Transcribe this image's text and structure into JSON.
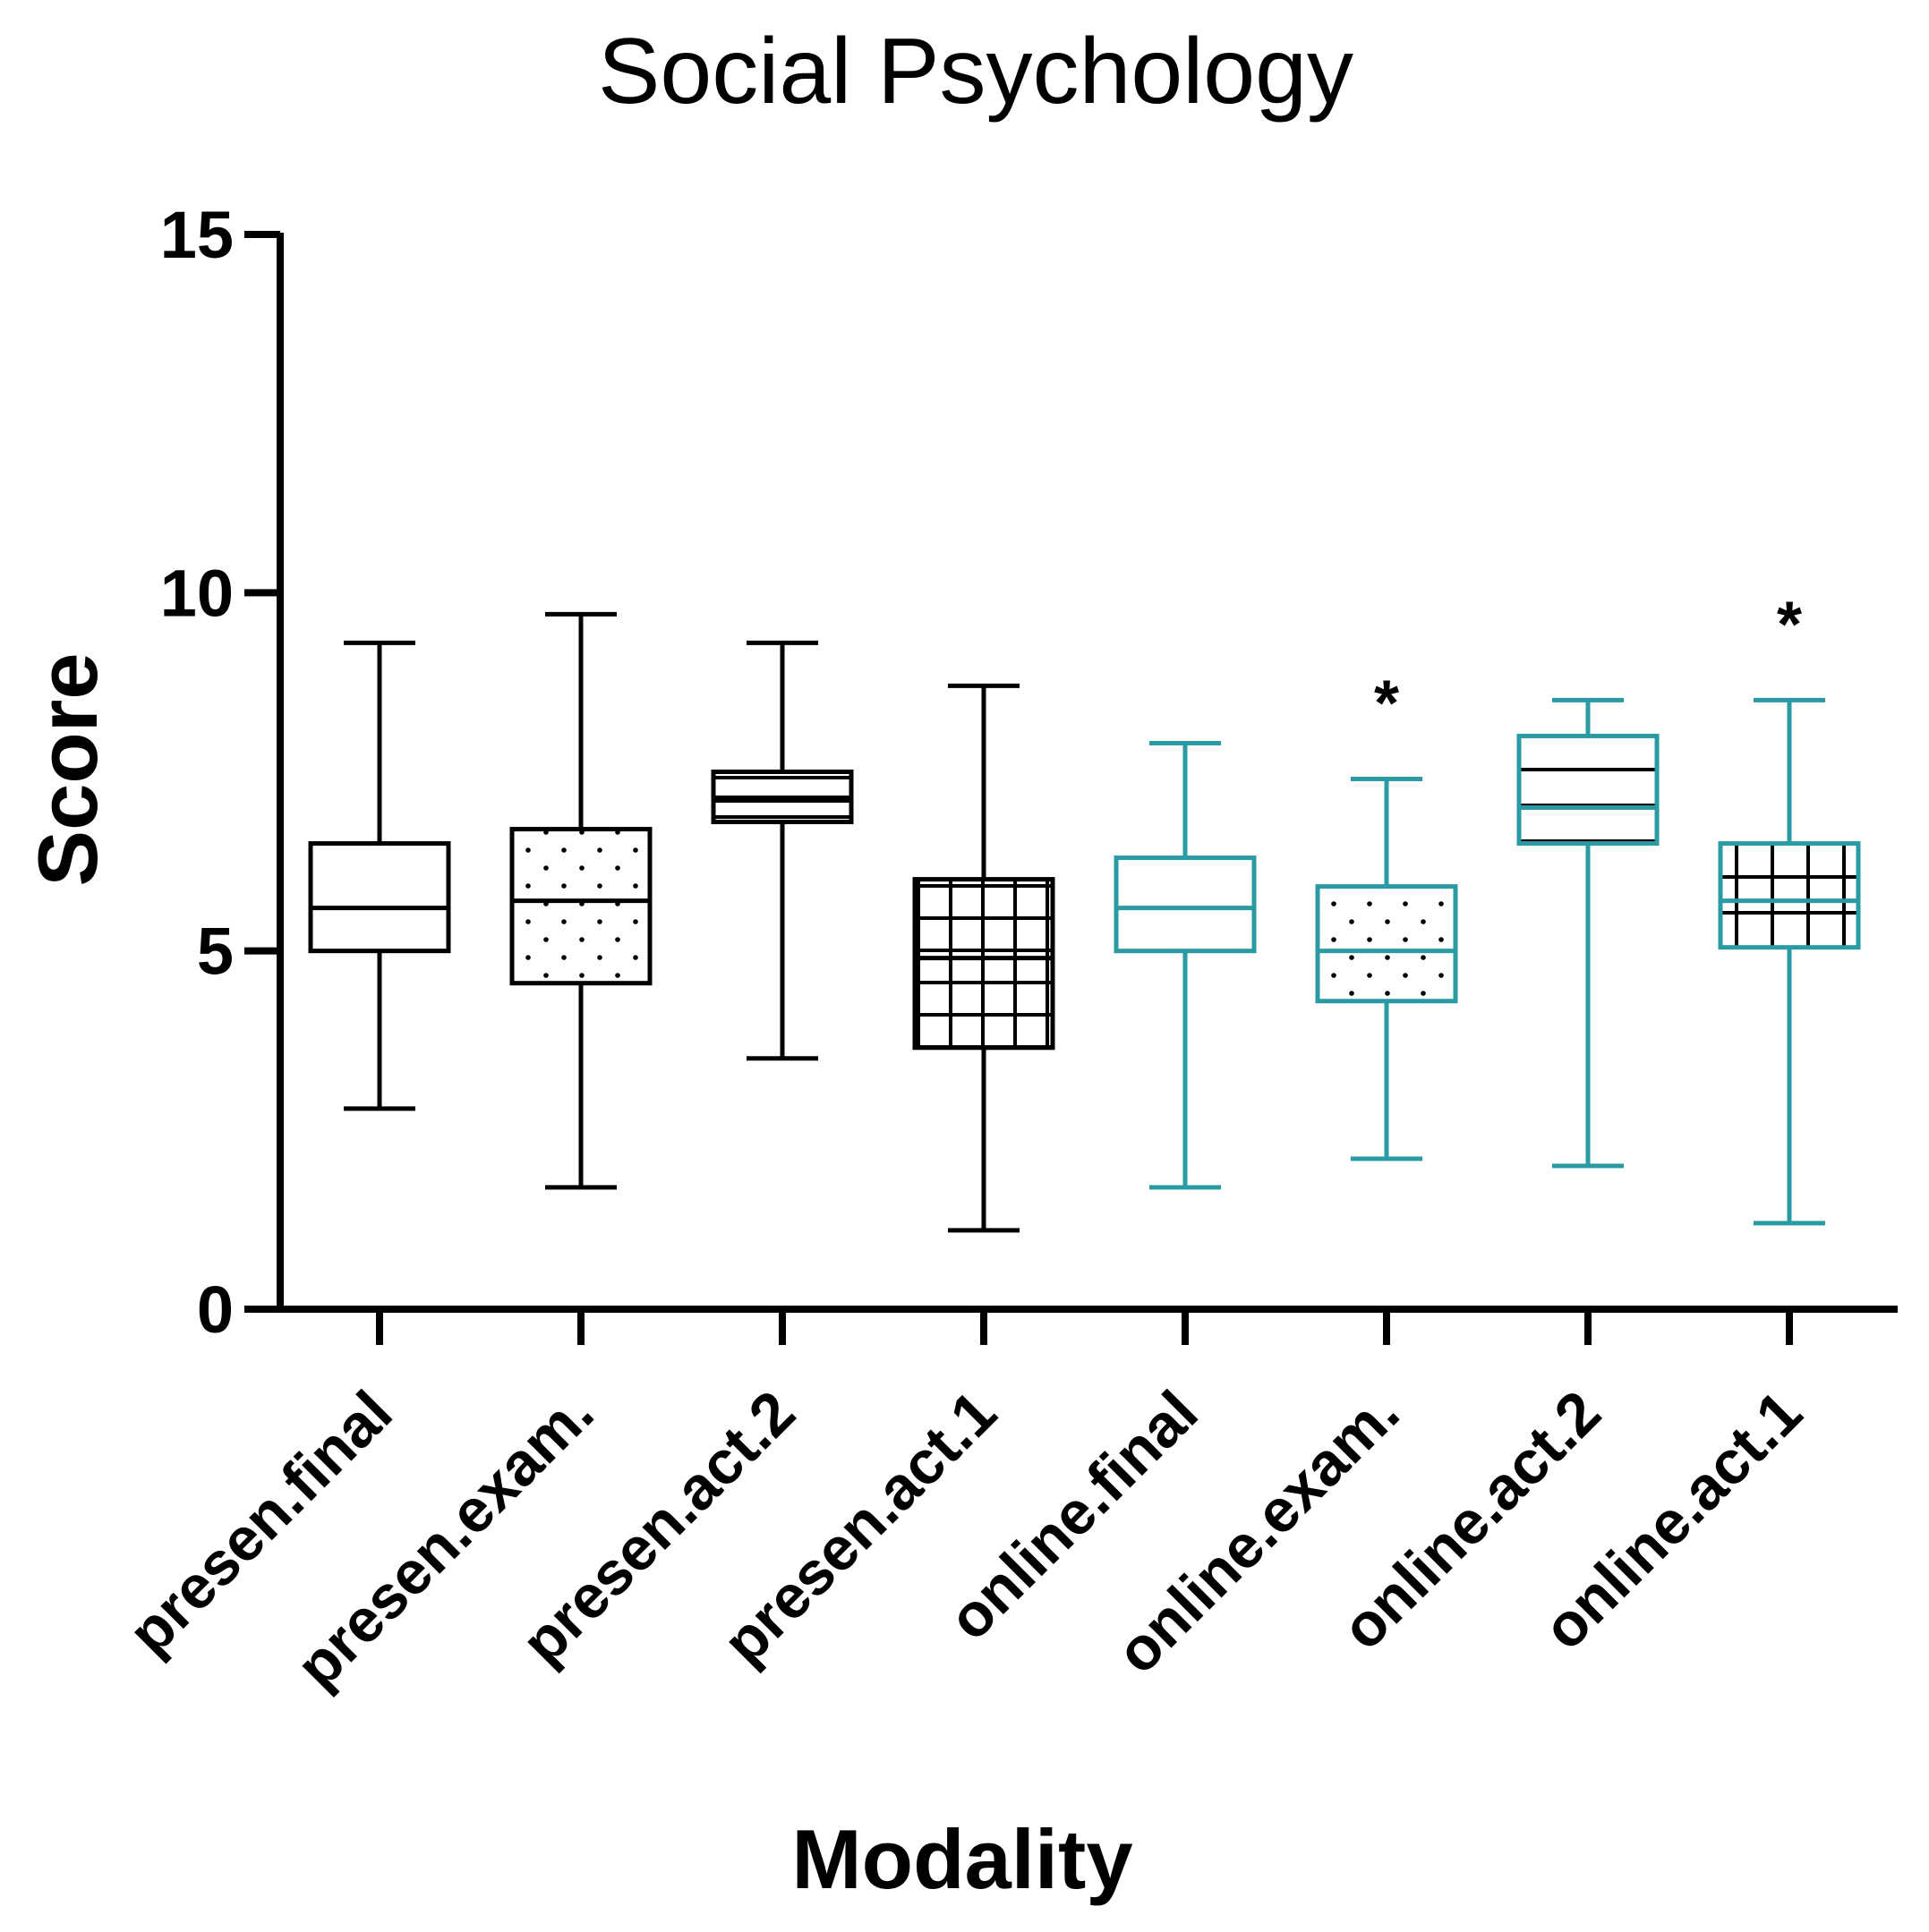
{
  "chart_data": {
    "type": "box",
    "title": "Social Psychology",
    "xlabel": "Modality",
    "ylabel": "Score",
    "ylim": [
      0,
      15
    ],
    "yticks": [
      0,
      5,
      10,
      15
    ],
    "colors": {
      "presential": "#000000",
      "online": "#2a9aa3"
    },
    "categories": [
      "presen.final",
      "presen.exam.",
      "presen.act.2",
      "presen.act.1",
      "online.final",
      "online.exam.",
      "online.act.2",
      "online.act.1"
    ],
    "boxes": [
      {
        "category": "presen.final",
        "group": "presential",
        "pattern": "none",
        "min": 2.8,
        "q1": 5.0,
        "median": 5.6,
        "q3": 6.5,
        "max": 9.3,
        "significance": ""
      },
      {
        "category": "presen.exam.",
        "group": "presential",
        "pattern": "dots",
        "min": 1.7,
        "q1": 4.55,
        "median": 5.7,
        "q3": 6.7,
        "max": 9.7,
        "significance": ""
      },
      {
        "category": "presen.act.2",
        "group": "presential",
        "pattern": "hlines",
        "min": 3.5,
        "q1": 6.8,
        "median": 7.1,
        "q3": 7.5,
        "max": 9.3,
        "significance": ""
      },
      {
        "category": "presen.act.1",
        "group": "presential",
        "pattern": "grid",
        "min": 1.1,
        "q1": 3.65,
        "median": 4.9,
        "q3": 6.0,
        "max": 8.7,
        "significance": ""
      },
      {
        "category": "online.final",
        "group": "online",
        "pattern": "none",
        "min": 1.7,
        "q1": 5.0,
        "median": 5.6,
        "q3": 6.3,
        "max": 7.9,
        "significance": ""
      },
      {
        "category": "online.exam.",
        "group": "online",
        "pattern": "dots",
        "min": 2.1,
        "q1": 4.3,
        "median": 5.0,
        "q3": 5.9,
        "max": 7.4,
        "significance": "*"
      },
      {
        "category": "online.act.2",
        "group": "online",
        "pattern": "hlines",
        "min": 2.0,
        "q1": 6.5,
        "median": 7.0,
        "q3": 8.0,
        "max": 8.5,
        "significance": ""
      },
      {
        "category": "online.act.1",
        "group": "online",
        "pattern": "grid",
        "min": 1.2,
        "q1": 5.05,
        "median": 5.7,
        "q3": 6.5,
        "max": 8.5,
        "significance": "*"
      }
    ]
  }
}
